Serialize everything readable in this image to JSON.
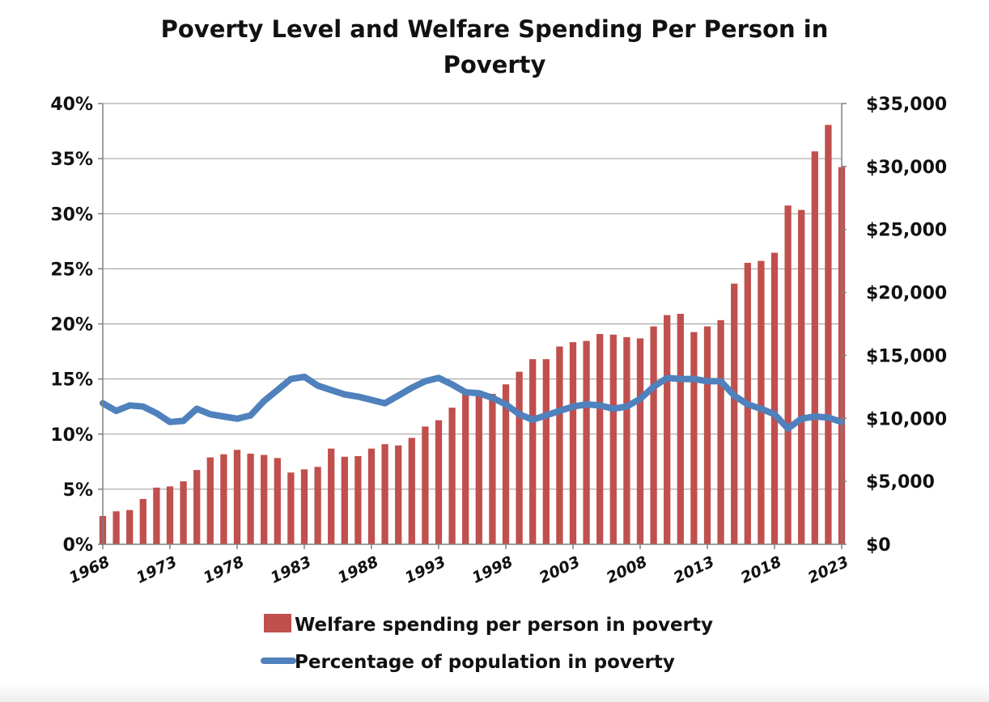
{
  "chart_data": {
    "type": "bar+line",
    "title": [
      "Poverty Level and Welfare Spending Per Person in",
      "Poverty"
    ],
    "x": [
      1968,
      1969,
      1970,
      1971,
      1972,
      1973,
      1974,
      1975,
      1976,
      1977,
      1978,
      1979,
      1980,
      1981,
      1982,
      1983,
      1984,
      1985,
      1986,
      1987,
      1988,
      1989,
      1990,
      1991,
      1992,
      1993,
      1994,
      1995,
      1996,
      1997,
      1998,
      1999,
      2000,
      2001,
      2002,
      2003,
      2004,
      2005,
      2006,
      2007,
      2008,
      2009,
      2010,
      2011,
      2012,
      2013,
      2014,
      2015,
      2016,
      2017,
      2018,
      2019,
      2020,
      2021,
      2022,
      2023
    ],
    "x_tick_labels": [
      "1968",
      "1973",
      "1978",
      "1983",
      "1988",
      "1993",
      "1998",
      "2003",
      "2008",
      "2013",
      "2018",
      "2023"
    ],
    "x_tick_years": [
      1968,
      1973,
      1978,
      1983,
      1988,
      1993,
      1998,
      2003,
      2008,
      2013,
      2018,
      2023
    ],
    "series": [
      {
        "name": "Welfare spending per person in poverty",
        "kind": "bar",
        "axis": "right",
        "color": "#c0504d",
        "values": [
          2250,
          2620,
          2720,
          3600,
          4500,
          4600,
          5000,
          5900,
          6900,
          7150,
          7500,
          7200,
          7100,
          6850,
          5700,
          5950,
          6150,
          7600,
          6950,
          7000,
          7600,
          7950,
          7850,
          8450,
          9350,
          9850,
          10850,
          11950,
          12200,
          11950,
          12700,
          13700,
          14700,
          14700,
          15700,
          16050,
          16150,
          16700,
          16650,
          16450,
          16350,
          17300,
          18200,
          18300,
          16850,
          17300,
          17800,
          20700,
          22350,
          22500,
          23150,
          26900,
          26550,
          31200,
          33300,
          29950
        ]
      },
      {
        "name": "Percentage of population in poverty",
        "kind": "line",
        "axis": "left",
        "color": "#4f81bd",
        "values": [
          12.8,
          12.1,
          12.6,
          12.5,
          11.9,
          11.1,
          11.2,
          12.3,
          11.8,
          11.6,
          11.4,
          11.7,
          13.0,
          14.0,
          15.0,
          15.2,
          14.4,
          14.0,
          13.6,
          13.4,
          13.1,
          12.8,
          13.5,
          14.2,
          14.8,
          15.1,
          14.5,
          13.8,
          13.7,
          13.3,
          12.7,
          11.8,
          11.3,
          11.7,
          12.1,
          12.5,
          12.7,
          12.6,
          12.3,
          12.5,
          13.2,
          14.3,
          15.1,
          15.0,
          15.0,
          14.8,
          14.8,
          13.5,
          12.7,
          12.3,
          11.8,
          10.5,
          11.4,
          11.6,
          11.5,
          11.1
        ]
      }
    ],
    "y_left": {
      "ticks": [
        "0%",
        "5%",
        "10%",
        "15%",
        "20%",
        "25%",
        "30%",
        "35%",
        "40%"
      ],
      "lim": [
        0,
        40
      ],
      "unit": "%"
    },
    "y_right": {
      "ticks": [
        "$0",
        "$5,000",
        "$10,000",
        "$15,000",
        "$20,000",
        "$25,000",
        "$30,000",
        "$35,000"
      ],
      "lim": [
        0,
        35000
      ]
    },
    "grid": "horizontal",
    "legend_position": "bottom"
  }
}
